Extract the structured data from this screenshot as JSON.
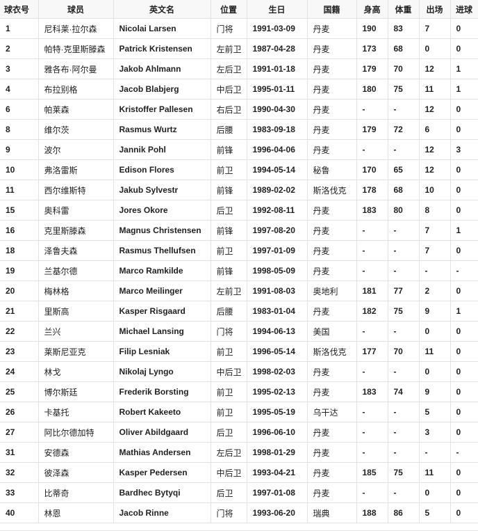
{
  "headers": [
    "球衣号",
    "球员",
    "英文名",
    "位置",
    "生日",
    "国籍",
    "身高",
    "体重",
    "出场",
    "进球"
  ],
  "rows": [
    [
      "1",
      "尼科莱·拉尔森",
      "Nicolai Larsen",
      "门将",
      "1991-03-09",
      "丹麦",
      "190",
      "83",
      "7",
      "0"
    ],
    [
      "2",
      "帕特·克里斯滕森",
      "Patrick Kristensen",
      "左前卫",
      "1987-04-28",
      "丹麦",
      "173",
      "68",
      "0",
      "0"
    ],
    [
      "3",
      "雅各布·阿尔曼",
      "Jakob Ahlmann",
      "左后卫",
      "1991-01-18",
      "丹麦",
      "179",
      "70",
      "12",
      "1"
    ],
    [
      "4",
      "布拉别格",
      "Jacob Blabjerg",
      "中后卫",
      "1995-01-11",
      "丹麦",
      "180",
      "75",
      "11",
      "1"
    ],
    [
      "6",
      "帕莱森",
      "Kristoffer Pallesen",
      "右后卫",
      "1990-04-30",
      "丹麦",
      "-",
      "-",
      "12",
      "0"
    ],
    [
      "8",
      "维尔茨",
      "Rasmus Wurtz",
      "后腰",
      "1983-09-18",
      "丹麦",
      "179",
      "72",
      "6",
      "0"
    ],
    [
      "9",
      "波尔",
      "Jannik Pohl",
      "前锋",
      "1996-04-06",
      "丹麦",
      "-",
      "-",
      "12",
      "3"
    ],
    [
      "10",
      "弗洛雷斯",
      "Edison Flores",
      "前卫",
      "1994-05-14",
      "秘鲁",
      "170",
      "65",
      "12",
      "0"
    ],
    [
      "11",
      "西尔维斯特",
      "Jakub Sylvestr",
      "前锋",
      "1989-02-02",
      "斯洛伐克",
      "178",
      "68",
      "10",
      "0"
    ],
    [
      "15",
      "奥科雷",
      "Jores Okore",
      "后卫",
      "1992-08-11",
      "丹麦",
      "183",
      "80",
      "8",
      "0"
    ],
    [
      "16",
      "克里斯滕森",
      "Magnus Christensen",
      "前锋",
      "1997-08-20",
      "丹麦",
      "-",
      "-",
      "7",
      "1"
    ],
    [
      "18",
      "泽鲁夫森",
      "Rasmus Thellufsen",
      "前卫",
      "1997-01-09",
      "丹麦",
      "-",
      "-",
      "7",
      "0"
    ],
    [
      "19",
      "兰基尔德",
      "Marco Ramkilde",
      "前锋",
      "1998-05-09",
      "丹麦",
      "-",
      "-",
      "-",
      "-"
    ],
    [
      "20",
      "梅林格",
      "Marco Meilinger",
      "左前卫",
      "1991-08-03",
      "奥地利",
      "181",
      "77",
      "2",
      "0"
    ],
    [
      "21",
      "里斯高",
      "Kasper Risgaard",
      "后腰",
      "1983-01-04",
      "丹麦",
      "182",
      "75",
      "9",
      "1"
    ],
    [
      "22",
      "兰兴",
      "Michael Lansing",
      "门将",
      "1994-06-13",
      "美国",
      "-",
      "-",
      "0",
      "0"
    ],
    [
      "23",
      "莱斯尼亚克",
      "Filip Lesniak",
      "前卫",
      "1996-05-14",
      "斯洛伐克",
      "177",
      "70",
      "11",
      "0"
    ],
    [
      "24",
      "林戈",
      "Nikolaj Lyngo",
      "中后卫",
      "1998-02-03",
      "丹麦",
      "-",
      "-",
      "0",
      "0"
    ],
    [
      "25",
      "博尔斯廷",
      "Frederik Borsting",
      "前卫",
      "1995-02-13",
      "丹麦",
      "183",
      "74",
      "9",
      "0"
    ],
    [
      "26",
      "卡基托",
      "Robert Kakeeto",
      "前卫",
      "1995-05-19",
      "乌干达",
      "-",
      "-",
      "5",
      "0"
    ],
    [
      "27",
      "阿比尔德加特",
      "Oliver Abildgaard",
      "后卫",
      "1996-06-10",
      "丹麦",
      "-",
      "-",
      "3",
      "0"
    ],
    [
      "31",
      "安德森",
      "Mathias Andersen",
      "左后卫",
      "1998-01-29",
      "丹麦",
      "-",
      "-",
      "-",
      "-"
    ],
    [
      "32",
      "彼泽森",
      "Kasper Pedersen",
      "中后卫",
      "1993-04-21",
      "丹麦",
      "185",
      "75",
      "11",
      "0"
    ],
    [
      "33",
      "比蒂奇",
      "Bardhec Bytyqi",
      "后卫",
      "1997-01-08",
      "丹麦",
      "-",
      "-",
      "0",
      "0"
    ],
    [
      "40",
      "林恩",
      "Jacob Rinne",
      "门将",
      "1993-06-20",
      "瑞典",
      "188",
      "86",
      "5",
      "0"
    ]
  ]
}
